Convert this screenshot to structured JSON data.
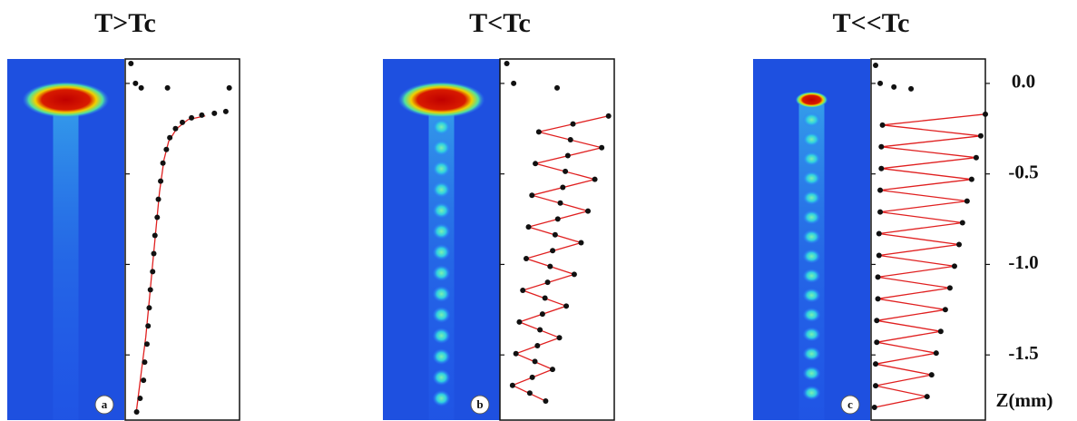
{
  "chart_data": [
    {
      "type": "scatter",
      "title": "T>Tc",
      "label": "a",
      "xlim": [
        0,
        1
      ],
      "ylim": [
        -1.86,
        0.135
      ],
      "point_color": "#111111",
      "x": [
        0.05,
        0.09,
        0.14,
        0.37,
        0.91,
        0.88,
        0.78,
        0.67,
        0.58,
        0.5,
        0.44,
        0.39,
        0.36,
        0.33,
        0.31,
        0.29,
        0.28,
        0.26,
        0.25,
        0.24,
        0.22,
        0.21,
        0.2,
        0.19,
        0.17,
        0.16,
        0.13,
        0.1
      ],
      "y": [
        0.11,
        0,
        -0.025,
        -0.025,
        -0.025,
        -0.155,
        -0.165,
        -0.175,
        -0.19,
        -0.215,
        -0.25,
        -0.3,
        -0.365,
        -0.44,
        -0.54,
        -0.64,
        -0.74,
        -0.84,
        -0.94,
        -1.04,
        -1.14,
        -1.24,
        -1.34,
        -1.44,
        -1.54,
        -1.64,
        -1.74,
        -1.815
      ],
      "fit": {
        "color": "#e02020",
        "x": [
          0.7,
          0.55,
          0.45,
          0.38,
          0.34,
          0.3,
          0.27,
          0.24,
          0.21,
          0.18,
          0.14,
          0.1
        ],
        "y": [
          -0.18,
          -0.2,
          -0.25,
          -0.32,
          -0.42,
          -0.6,
          -0.8,
          -1.0,
          -1.2,
          -1.4,
          -1.6,
          -1.8
        ]
      }
    },
    {
      "type": "scatter",
      "title": "T<Tc",
      "label": "b",
      "xlim": [
        0,
        1
      ],
      "ylim": [
        -1.86,
        0.135
      ],
      "point_color": "#111111",
      "x": [
        0.06,
        0.12,
        0.5,
        0.95,
        0.34,
        0.89,
        0.31,
        0.83,
        0.28,
        0.77,
        0.25,
        0.71,
        0.23,
        0.65,
        0.2,
        0.58,
        0.17,
        0.52,
        0.14,
        0.46,
        0.11,
        0.4,
        0.639,
        0.617,
        0.594,
        0.572,
        0.55,
        0.528,
        0.506,
        0.483,
        0.461,
        0.439,
        0.417,
        0.394,
        0.372,
        0.35,
        0.328,
        0.306,
        0.283,
        0.261
      ],
      "y": [
        0.11,
        0,
        -0.025,
        -0.18,
        -0.268,
        -0.355,
        -0.443,
        -0.53,
        -0.618,
        -0.705,
        -0.793,
        -0.88,
        -0.968,
        -1.055,
        -1.143,
        -1.23,
        -1.318,
        -1.405,
        -1.493,
        -1.58,
        -1.668,
        -1.755,
        -0.224,
        -0.311,
        -0.399,
        -0.486,
        -0.574,
        -0.661,
        -0.749,
        -0.836,
        -0.924,
        -1.011,
        -1.099,
        -1.186,
        -1.274,
        -1.361,
        -1.449,
        -1.536,
        -1.624,
        -1.711
      ],
      "fit": {
        "color": "#e02020",
        "x": [
          0.95,
          0.34,
          0.89,
          0.31,
          0.83,
          0.28,
          0.77,
          0.25,
          0.71,
          0.23,
          0.65,
          0.2,
          0.58,
          0.17,
          0.52,
          0.14,
          0.46,
          0.11,
          0.4
        ],
        "y": [
          -0.18,
          -0.268,
          -0.355,
          -0.443,
          -0.53,
          -0.618,
          -0.705,
          -0.793,
          -0.88,
          -0.968,
          -1.055,
          -1.143,
          -1.23,
          -1.318,
          -1.405,
          -1.493,
          -1.58,
          -1.668,
          -1.755
        ]
      }
    },
    {
      "type": "scatter",
      "title": "T<<Tc",
      "label": "c",
      "xlim": [
        0,
        1
      ],
      "ylim": [
        -1.86,
        0.135
      ],
      "point_color": "#111111",
      "ylabel": "Z(mm)",
      "yticks": [
        {
          "value": 0,
          "label": "0.0"
        },
        {
          "value": -0.5,
          "label": "-0.5"
        },
        {
          "value": -1,
          "label": "-1.0"
        },
        {
          "value": -1.5,
          "label": "-1.5"
        }
      ],
      "x": [
        0.04,
        0.08,
        0.2,
        0.35,
        1.0,
        0.1,
        0.96,
        0.09,
        0.92,
        0.09,
        0.88,
        0.08,
        0.84,
        0.08,
        0.8,
        0.07,
        0.77,
        0.07,
        0.73,
        0.06,
        0.69,
        0.06,
        0.65,
        0.05,
        0.61,
        0.05,
        0.57,
        0.04,
        0.53,
        0.04,
        0.49,
        0.03
      ],
      "y": [
        0.1,
        0,
        -0.02,
        -0.03,
        -0.17,
        -0.23,
        -0.29,
        -0.35,
        -0.41,
        -0.47,
        -0.53,
        -0.59,
        -0.65,
        -0.71,
        -0.77,
        -0.83,
        -0.89,
        -0.95,
        -1.01,
        -1.07,
        -1.13,
        -1.19,
        -1.25,
        -1.31,
        -1.37,
        -1.43,
        -1.49,
        -1.55,
        -1.61,
        -1.67,
        -1.73,
        -1.79
      ],
      "fit": {
        "color": "#e02020",
        "x": [
          1.0,
          0.1,
          0.96,
          0.09,
          0.92,
          0.09,
          0.88,
          0.08,
          0.84,
          0.08,
          0.8,
          0.07,
          0.77,
          0.07,
          0.73,
          0.06,
          0.69,
          0.06,
          0.65,
          0.05,
          0.61,
          0.05,
          0.57,
          0.04,
          0.53,
          0.04,
          0.49,
          0.03
        ],
        "y": [
          -0.17,
          -0.23,
          -0.29,
          -0.35,
          -0.41,
          -0.47,
          -0.53,
          -0.59,
          -0.65,
          -0.71,
          -0.77,
          -0.83,
          -0.89,
          -0.95,
          -1.01,
          -1.07,
          -1.13,
          -1.19,
          -1.25,
          -1.31,
          -1.37,
          -1.43,
          -1.49,
          -1.55,
          -1.61,
          -1.67,
          -1.73,
          -1.79
        ]
      }
    }
  ]
}
